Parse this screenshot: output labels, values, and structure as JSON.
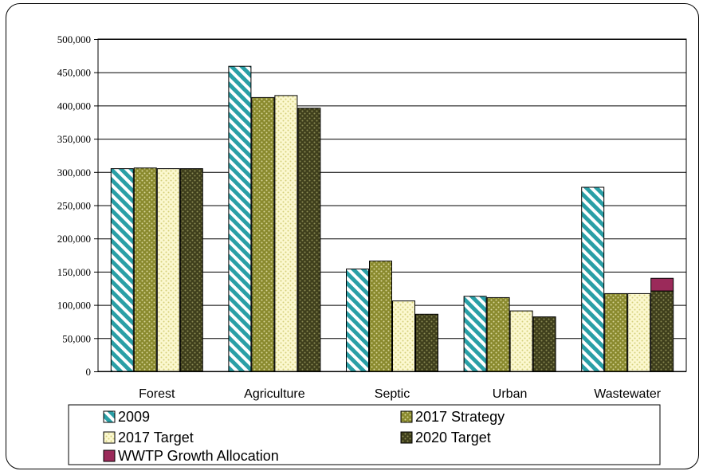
{
  "chart_data": {
    "type": "bar",
    "categories": [
      "Forest",
      "Agriculture",
      "Septic",
      "Urban",
      "Wastewater"
    ],
    "ylim": [
      0,
      500000
    ],
    "yticks": [
      "0",
      "50,000",
      "100,000",
      "150,000",
      "200,000",
      "250,000",
      "300,000",
      "350,000",
      "400,000",
      "450,000",
      "500,000"
    ],
    "grid": true,
    "legend_position": "bottom",
    "series": [
      {
        "name": "2009",
        "values": [
          305000,
          459000,
          154000,
          113000,
          277000
        ],
        "color": "#2a9fa6"
      },
      {
        "name": "2017 Strategy",
        "values": [
          306000,
          412000,
          166000,
          111000,
          117000
        ],
        "color": "#8a8a2e"
      },
      {
        "name": "2017 Target",
        "values": [
          305000,
          415000,
          106000,
          91000,
          117000
        ],
        "color": "#f3efa6"
      },
      {
        "name": "2020 Target",
        "values": [
          305000,
          396000,
          86000,
          82000,
          121000
        ],
        "color": "#4a4a22"
      },
      {
        "name": "WWTP Growth Allocation",
        "values": [
          0,
          0,
          0,
          0,
          19000
        ],
        "color": "#9b2a5a",
        "stacked_on": "2020 Target"
      }
    ]
  }
}
